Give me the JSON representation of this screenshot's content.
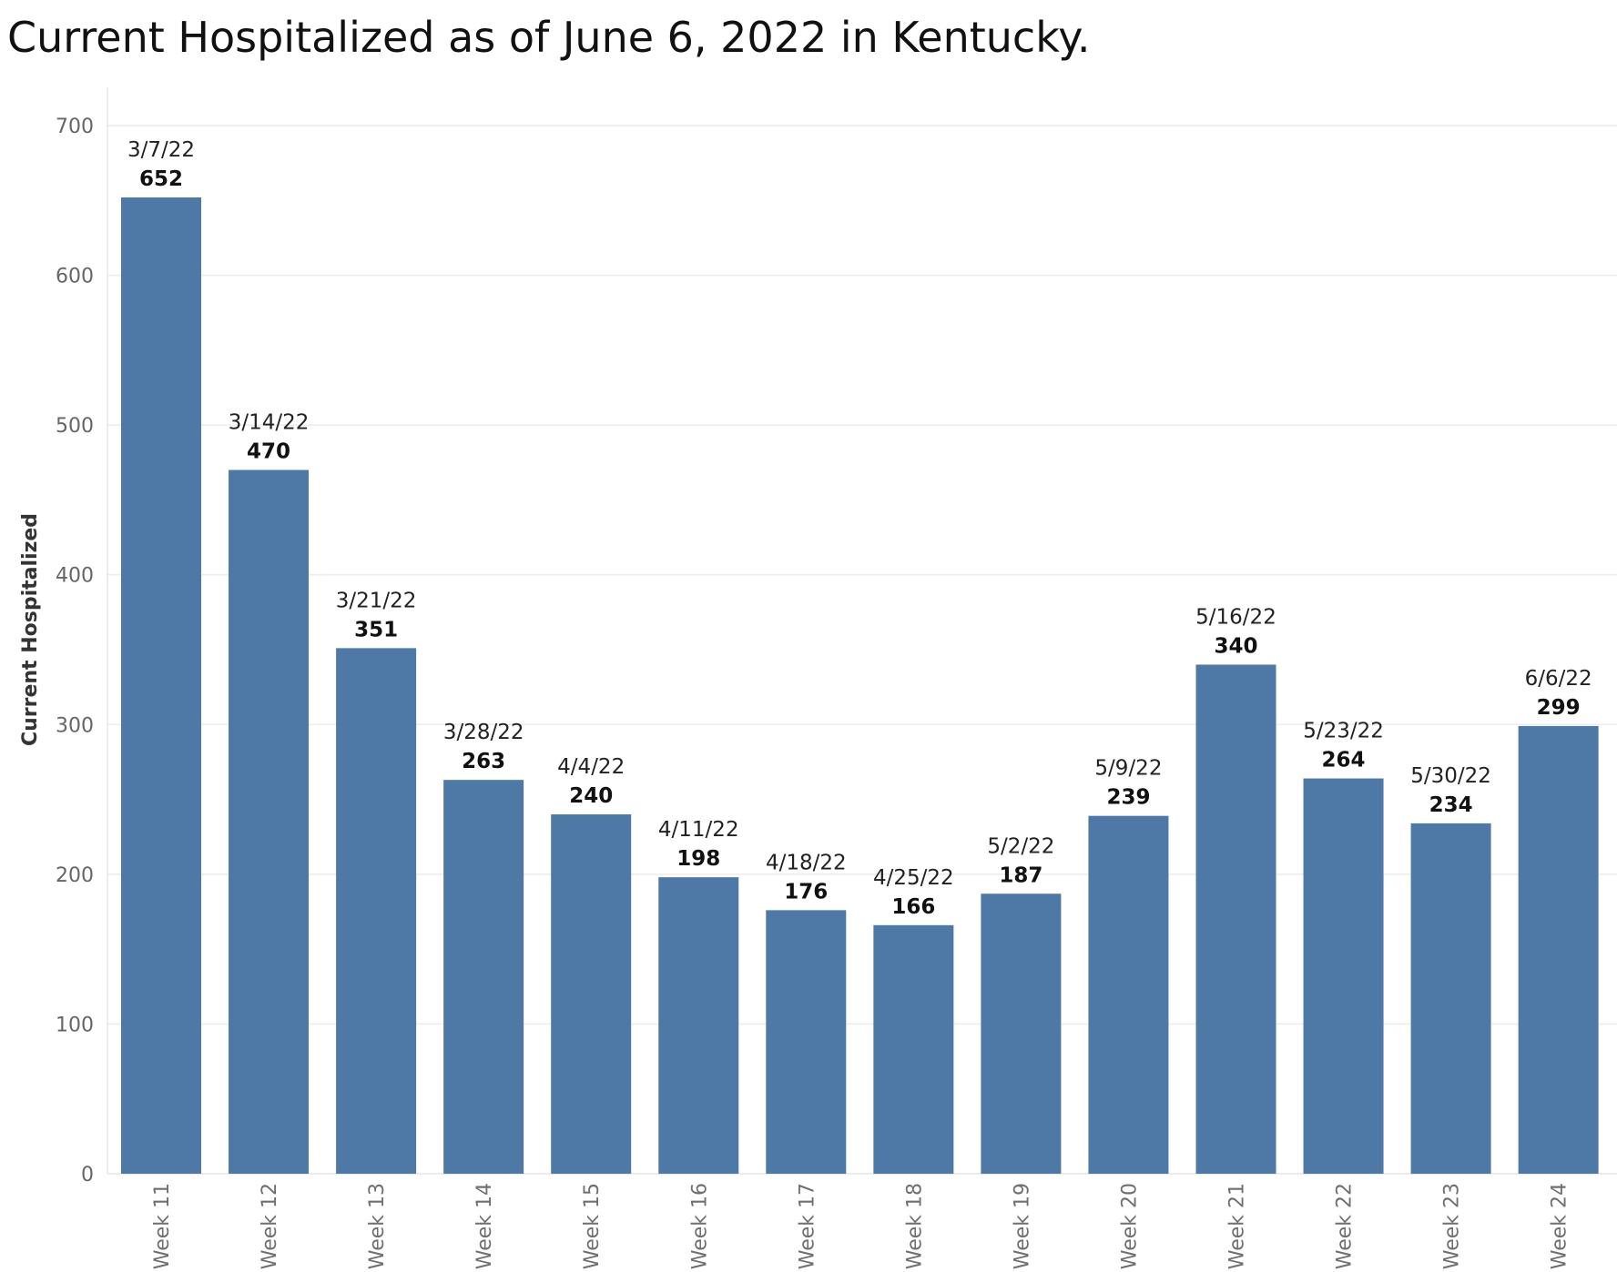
{
  "chart_data": {
    "type": "bar",
    "title": "Current Hospitalized as of June 6, 2022 in Kentucky.",
    "xlabel": "",
    "ylabel": "Current Hospitalized",
    "categories": [
      "Week 11",
      "Week 12",
      "Week 13",
      "Week 14",
      "Week 15",
      "Week 16",
      "Week 17",
      "Week 18",
      "Week 19",
      "Week 20",
      "Week 21",
      "Week 22",
      "Week 23",
      "Week 24"
    ],
    "dates": [
      "3/7/22",
      "3/14/22",
      "3/21/22",
      "3/28/22",
      "4/4/22",
      "4/11/22",
      "4/18/22",
      "4/25/22",
      "5/2/22",
      "5/9/22",
      "5/16/22",
      "5/23/22",
      "5/30/22",
      "6/6/22"
    ],
    "values": [
      652,
      470,
      351,
      263,
      240,
      198,
      176,
      166,
      187,
      239,
      340,
      264,
      234,
      299
    ],
    "ylim": [
      0,
      700
    ],
    "yticks": [
      0,
      100,
      200,
      300,
      400,
      500,
      600,
      700
    ],
    "grid": true,
    "legend": "none",
    "bar_color": "#4e79a7"
  }
}
